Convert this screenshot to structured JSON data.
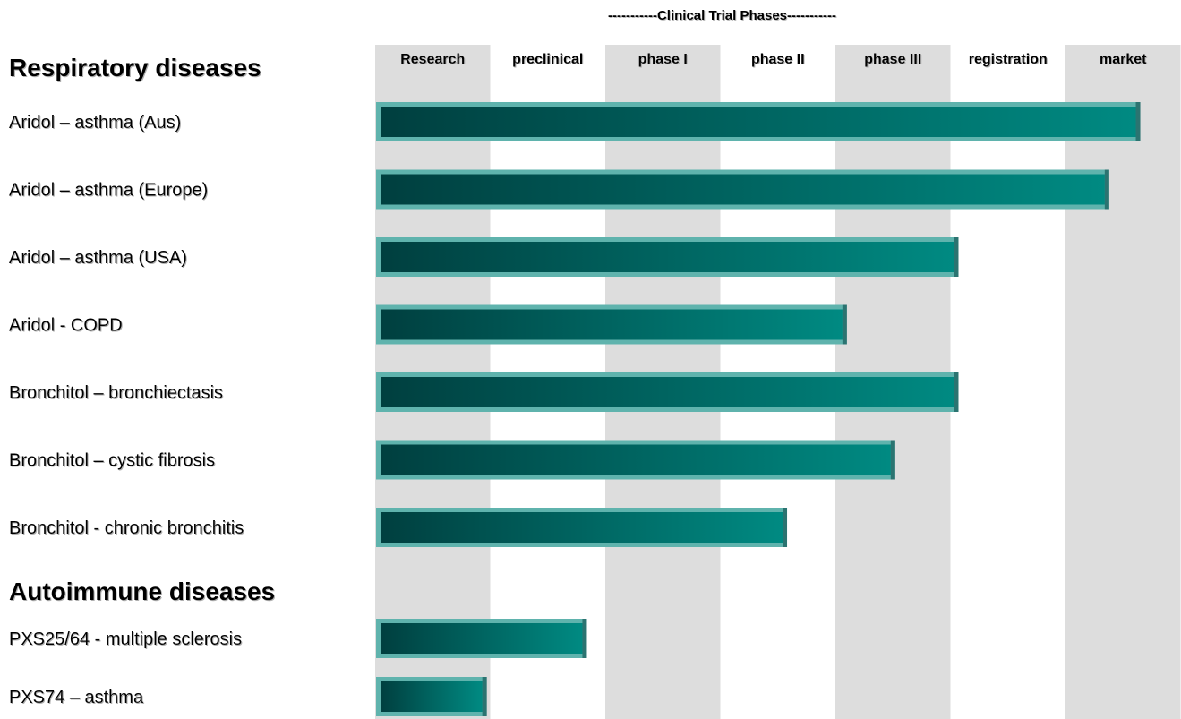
{
  "chart_data": {
    "type": "bar",
    "orientation": "horizontal",
    "super_title": "-----------Clinical Trial Phases-----------",
    "phases": [
      "Research",
      "preclinical",
      "phase I",
      "phase II",
      "phase III",
      "registration",
      "market"
    ],
    "x_unit": "phase columns completed (0 = start of Research, 7 = end of market)",
    "xlim": [
      0,
      7
    ],
    "groups": [
      {
        "name": "Respiratory diseases",
        "rows": [
          {
            "label": "Aridol – asthma (Aus)",
            "value": 6.65
          },
          {
            "label": "Aridol – asthma (Europe)",
            "value": 6.38
          },
          {
            "label": "Aridol – asthma (USA)",
            "value": 5.07
          },
          {
            "label": "Aridol - COPD",
            "value": 4.1
          },
          {
            "label": "Bronchitol – bronchiectasis",
            "value": 5.07
          },
          {
            "label": "Bronchitol – cystic fibrosis",
            "value": 4.52
          },
          {
            "label": "Bronchitol - chronic bronchitis",
            "value": 3.58
          }
        ]
      },
      {
        "name": "Autoimmune diseases",
        "rows": [
          {
            "label": "PXS25/64 - multiple sclerosis",
            "value": 1.84
          },
          {
            "label": "PXS74 – asthma",
            "value": 0.97
          }
        ]
      }
    ],
    "colors": {
      "column_shade": "#dddddd",
      "bar_dark": "#003f3f",
      "bar_light": "#008a82",
      "bar_highlight": "#5fb3ad"
    }
  }
}
